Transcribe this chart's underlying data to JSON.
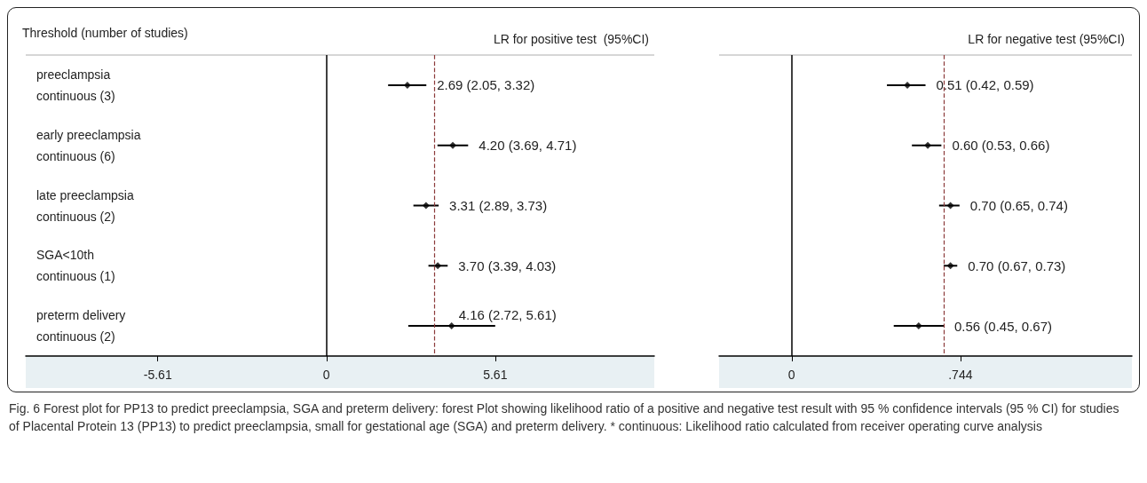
{
  "chart_data": [
    {
      "type": "scatter",
      "orientation": "horizontal",
      "title": "LR for positive test  (95%CI)",
      "ylabel": "Threshold (number of studies)",
      "categories": [
        "preeclampsia\ncontinuous (3)",
        "early preeclampsia\ncontinuous (6)",
        "late preeclampsia\ncontinuous (2)",
        "SGA<10th\ncontinuous (1)",
        "preterm delivery\ncontinuous (2)"
      ],
      "values": [
        2.69,
        4.2,
        3.31,
        3.7,
        4.16
      ],
      "errors": [
        [
          2.05,
          3.32
        ],
        [
          3.69,
          4.71
        ],
        [
          2.89,
          3.73
        ],
        [
          3.39,
          4.03
        ],
        [
          2.72,
          5.61
        ]
      ],
      "value_labels": [
        "2.69 (2.05, 3.32)",
        "4.20 (3.69, 4.71)",
        "3.31 (2.89, 3.73)",
        "3.70 (3.39, 4.03)",
        "4.16 (2.72, 5.61)"
      ],
      "color": "#000000",
      "marker": "diamond",
      "xlim": [
        -10,
        10.9
      ],
      "xticks": [
        -5.61,
        0,
        5.61
      ],
      "ref_lines": [
        {
          "axis": "x",
          "value": 0,
          "color": "#000000",
          "line_style": "solid"
        },
        {
          "axis": "x",
          "value": 3.6,
          "color": "#8b3a3a",
          "line_style": "dashed"
        }
      ],
      "annotations": [
        "Fig. 6 Forest plot for PP13 to predict preeclampsia, SGA and preterm delivery: forest Plot showing likelihood ratio of a positive and negative test result with 95 % confidence intervals (95 % CI) for studies of Placental Protein 13 (PP13) to predict preeclampsia, small for gestational age (SGA) and preterm delivery. * continuous: Likelihood ratio calculated from receiver operating curve analysis"
      ]
    },
    {
      "type": "scatter",
      "orientation": "horizontal",
      "title": "LR for negative test (95%CI)",
      "values": [
        0.51,
        0.6,
        0.7,
        0.7,
        0.56
      ],
      "errors": [
        [
          0.42,
          0.59
        ],
        [
          0.53,
          0.66
        ],
        [
          0.65,
          0.74
        ],
        [
          0.67,
          0.73
        ],
        [
          0.45,
          0.67
        ]
      ],
      "value_labels": [
        "0.51 (0.42, 0.59)",
        "0.60 (0.53, 0.66)",
        "0.70 (0.65, 0.74)",
        "0.70 (0.67, 0.73)",
        "0.56 (0.45, 0.67)"
      ],
      "color": "#000000",
      "marker": "diamond",
      "xlim": [
        -0.32,
        1.5
      ],
      "xticks": [
        0,
        {
          "value": 0.744,
          "label": ".744"
        }
      ],
      "ref_lines": [
        {
          "axis": "x",
          "value": 0,
          "color": "#000000",
          "line_style": "solid"
        },
        {
          "axis": "x",
          "value": 0.67,
          "color": "#8b3a3a",
          "line_style": "dashed"
        }
      ]
    }
  ]
}
